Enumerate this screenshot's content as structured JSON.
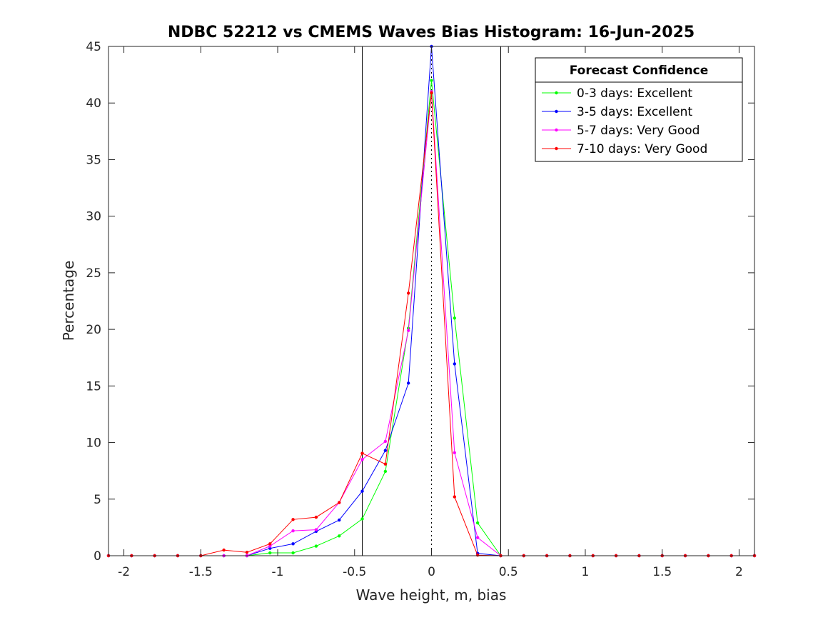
{
  "chart_data": {
    "type": "line",
    "title": "NDBC 52212 vs CMEMS Waves Bias Histogram: 16-Jun-2025",
    "xlabel": "Wave height, m, bias",
    "ylabel": "Percentage",
    "xlim": [
      -2.1,
      2.1
    ],
    "ylim": [
      0,
      45
    ],
    "xticks": [
      -2,
      -1.5,
      -1,
      -0.5,
      0,
      0.5,
      1,
      1.5,
      2
    ],
    "xtick_labels": [
      "-2",
      "-1.5",
      "-1",
      "-0.5",
      "0",
      "0.5",
      "1",
      "1.5",
      "2"
    ],
    "yticks": [
      0,
      5,
      10,
      15,
      20,
      25,
      30,
      35,
      40,
      45
    ],
    "ytick_labels": [
      "0",
      "5",
      "10",
      "15",
      "20",
      "25",
      "30",
      "35",
      "40",
      "45"
    ],
    "reference_lines": {
      "solid_x": [
        -0.45,
        0.45
      ],
      "dotted_x": [
        0
      ]
    },
    "x": [
      -2.1,
      -1.95,
      -1.8,
      -1.65,
      -1.5,
      -1.35,
      -1.2,
      -1.05,
      -0.9,
      -0.75,
      -0.6,
      -0.45,
      -0.3,
      -0.15,
      0,
      0.15,
      0.3,
      0.45,
      0.6,
      0.75,
      0.9,
      1.05,
      1.2,
      1.35,
      1.5,
      1.65,
      1.8,
      1.95,
      2.1
    ],
    "series": [
      {
        "name": "0-3 days: Excellent",
        "color": "#00ff00",
        "values": [
          0,
          0,
          0,
          0,
          0,
          0,
          0,
          0.25,
          0.25,
          0.85,
          1.75,
          3.25,
          7.45,
          20.1,
          42.0,
          21.0,
          2.9,
          0,
          0,
          0,
          0,
          0,
          0,
          0,
          0,
          0,
          0,
          0,
          0
        ]
      },
      {
        "name": "3-5 days: Excellent",
        "color": "#0000ff",
        "values": [
          0,
          0,
          0,
          0,
          0,
          0,
          0,
          0.65,
          1.05,
          2.15,
          3.15,
          5.7,
          9.3,
          15.25,
          45.0,
          16.95,
          0.2,
          0,
          0,
          0,
          0,
          0,
          0,
          0,
          0,
          0,
          0,
          0,
          0
        ]
      },
      {
        "name": "5-7 days: Very Good",
        "color": "#ff00ff",
        "values": [
          0,
          0,
          0,
          0,
          0,
          0,
          0,
          0.85,
          2.2,
          2.3,
          4.7,
          8.5,
          10.1,
          19.9,
          41.0,
          9.1,
          1.6,
          0,
          0,
          0,
          0,
          0,
          0,
          0,
          0,
          0,
          0,
          0,
          0
        ]
      },
      {
        "name": "7-10 days: Very Good",
        "color": "#ff0000",
        "values": [
          0,
          0,
          0,
          0,
          0,
          0.5,
          0.3,
          1.05,
          3.2,
          3.4,
          4.7,
          9.05,
          8.1,
          23.2,
          40.9,
          5.2,
          0.05,
          0,
          0,
          0,
          0,
          0,
          0,
          0,
          0,
          0,
          0,
          0,
          0
        ]
      }
    ],
    "legend": {
      "title": "Forecast Confidence",
      "position": "top-right"
    },
    "grid": false
  }
}
